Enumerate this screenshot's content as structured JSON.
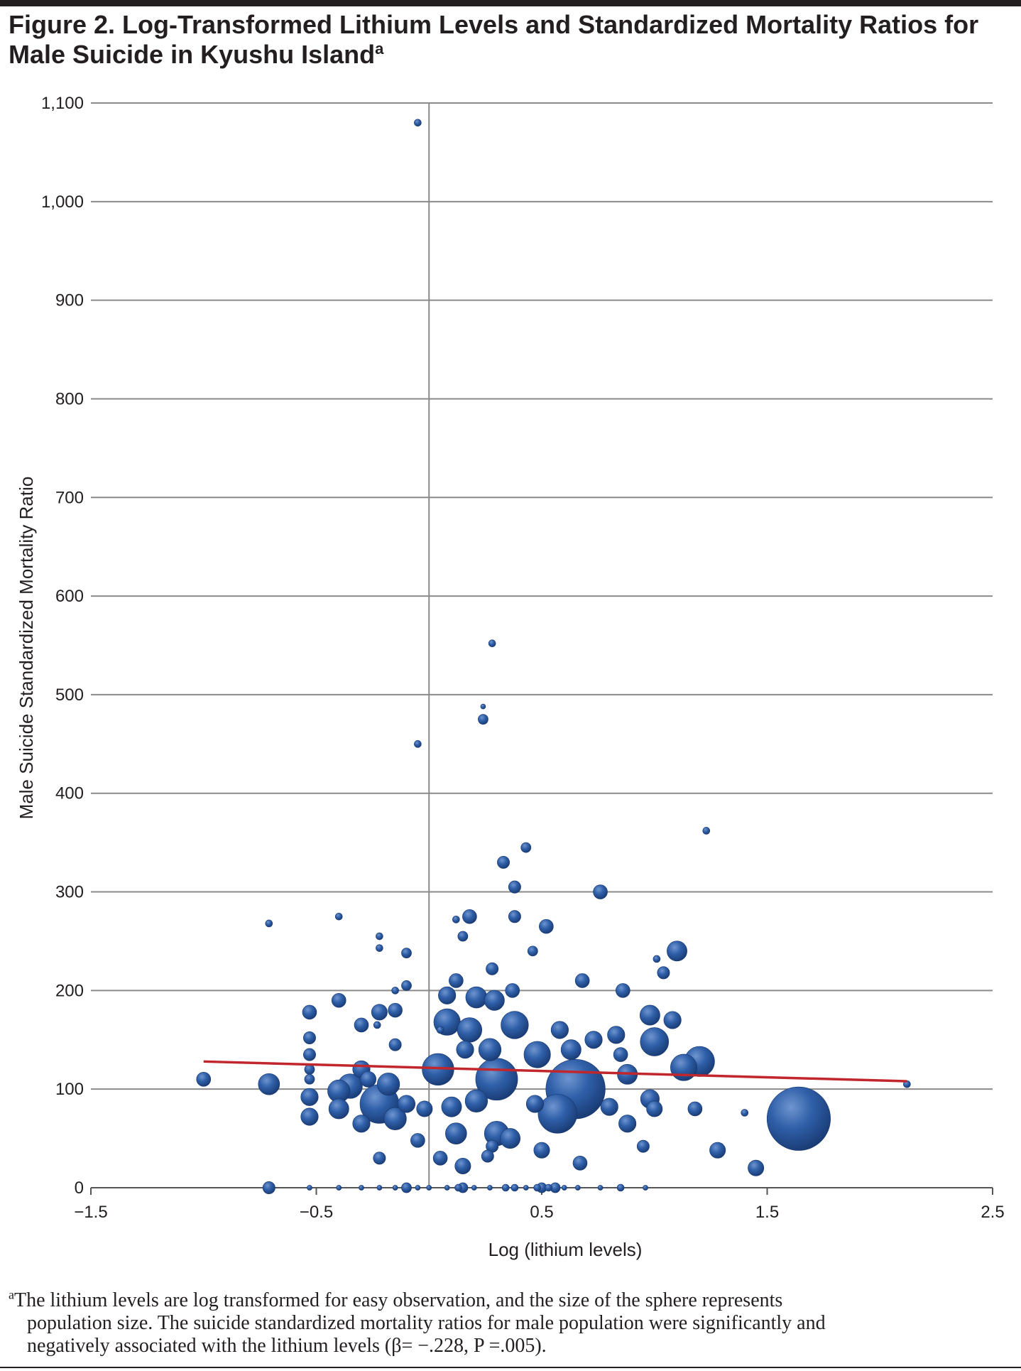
{
  "figure": {
    "title": "Figure 2. Log-Transformed Lithium Levels and Standardized Mortality Ratios for Male Suicide in Kyushu Island",
    "title_superscript": "a",
    "footnote": {
      "marker": "a",
      "lines": [
        "The lithium levels are log transformed for easy observation, and the size of the sphere represents",
        "population size. The suicide standardized mortality ratios for male population were significantly and",
        "negatively associated with the lithium levels (β= −.228, P =.005)."
      ]
    }
  },
  "colors": {
    "bubble": "#2f5fa8",
    "bubble_highlight": "#6f95d0",
    "bubble_shadow": "#17376e",
    "regression_line": "#c0262c",
    "gridline": "#8a8a8a",
    "text": "#231f20"
  },
  "chart_data": {
    "type": "scatter",
    "variant": "bubble",
    "title": "",
    "xlabel": "Log (lithium levels)",
    "ylabel": "Male Suicide Standardized Mortality Ratio",
    "xlim": [
      -1.5,
      2.5
    ],
    "ylim": [
      0,
      1100
    ],
    "x_ticks": [
      -1.5,
      -0.5,
      0.5,
      1.5,
      2.5
    ],
    "x_tick_labels": [
      "−1.5",
      "−0.5",
      "0.5",
      "1.5",
      "2.5"
    ],
    "y_ticks": [
      0,
      100,
      200,
      300,
      400,
      500,
      600,
      700,
      800,
      900,
      1000,
      1100
    ],
    "y_tick_labels": [
      "0",
      "100",
      "200",
      "300",
      "400",
      "500",
      "600",
      "700",
      "800",
      "900",
      "1,000",
      "1,100"
    ],
    "grid": "horizontal",
    "vertical_axis_at_x": 0,
    "size_encoding": "population size",
    "regression_line": {
      "x": [
        -1.0,
        2.12
      ],
      "y": [
        128,
        108
      ]
    },
    "points": [
      {
        "x": -0.05,
        "y": 1080,
        "s": 1
      },
      {
        "x": 0.28,
        "y": 552,
        "s": 1
      },
      {
        "x": 0.24,
        "y": 488,
        "s": 0.5
      },
      {
        "x": 0.24,
        "y": 475,
        "s": 2
      },
      {
        "x": -0.05,
        "y": 450,
        "s": 1
      },
      {
        "x": 1.23,
        "y": 362,
        "s": 1
      },
      {
        "x": 0.43,
        "y": 345,
        "s": 2
      },
      {
        "x": 0.33,
        "y": 330,
        "s": 3
      },
      {
        "x": 0.38,
        "y": 305,
        "s": 3
      },
      {
        "x": 0.76,
        "y": 300,
        "s": 4
      },
      {
        "x": -0.71,
        "y": 268,
        "s": 1
      },
      {
        "x": -0.4,
        "y": 275,
        "s": 1
      },
      {
        "x": 0.18,
        "y": 275,
        "s": 4
      },
      {
        "x": 0.38,
        "y": 275,
        "s": 3
      },
      {
        "x": 0.12,
        "y": 272,
        "s": 1
      },
      {
        "x": 0.52,
        "y": 265,
        "s": 4
      },
      {
        "x": -0.22,
        "y": 255,
        "s": 1
      },
      {
        "x": 0.15,
        "y": 255,
        "s": 2
      },
      {
        "x": -0.22,
        "y": 243,
        "s": 1
      },
      {
        "x": 0.46,
        "y": 240,
        "s": 2
      },
      {
        "x": -0.1,
        "y": 238,
        "s": 2
      },
      {
        "x": 1.1,
        "y": 240,
        "s": 8
      },
      {
        "x": 1.01,
        "y": 232,
        "s": 1
      },
      {
        "x": 0.28,
        "y": 222,
        "s": 3
      },
      {
        "x": 1.04,
        "y": 218,
        "s": 3
      },
      {
        "x": 0.12,
        "y": 210,
        "s": 4
      },
      {
        "x": 0.68,
        "y": 210,
        "s": 4
      },
      {
        "x": -0.1,
        "y": 205,
        "s": 2
      },
      {
        "x": 0.86,
        "y": 200,
        "s": 4
      },
      {
        "x": 0.37,
        "y": 200,
        "s": 4
      },
      {
        "x": -0.15,
        "y": 200,
        "s": 1
      },
      {
        "x": 0.08,
        "y": 195,
        "s": 6
      },
      {
        "x": 0.21,
        "y": 193,
        "s": 9
      },
      {
        "x": 0.29,
        "y": 190,
        "s": 8
      },
      {
        "x": -0.4,
        "y": 190,
        "s": 4
      },
      {
        "x": -0.53,
        "y": 178,
        "s": 4
      },
      {
        "x": -0.22,
        "y": 178,
        "s": 5
      },
      {
        "x": -0.15,
        "y": 180,
        "s": 4
      },
      {
        "x": 0.98,
        "y": 175,
        "s": 8
      },
      {
        "x": 1.08,
        "y": 170,
        "s": 6
      },
      {
        "x": 0.08,
        "y": 168,
        "s": 14
      },
      {
        "x": 0.18,
        "y": 160,
        "s": 12
      },
      {
        "x": 0.38,
        "y": 165,
        "s": 15
      },
      {
        "x": -0.3,
        "y": 165,
        "s": 4
      },
      {
        "x": -0.23,
        "y": 165,
        "s": 1
      },
      {
        "x": 0.58,
        "y": 160,
        "s": 6
      },
      {
        "x": 0.83,
        "y": 155,
        "s": 6
      },
      {
        "x": 0.05,
        "y": 160,
        "s": 1
      },
      {
        "x": -0.53,
        "y": 152,
        "s": 3
      },
      {
        "x": 0.73,
        "y": 150,
        "s": 6
      },
      {
        "x": 1.0,
        "y": 148,
        "s": 16
      },
      {
        "x": 0.16,
        "y": 140,
        "s": 6
      },
      {
        "x": 0.27,
        "y": 140,
        "s": 10
      },
      {
        "x": 0.48,
        "y": 135,
        "s": 14
      },
      {
        "x": 0.63,
        "y": 140,
        "s": 8
      },
      {
        "x": 0.85,
        "y": 135,
        "s": 4
      },
      {
        "x": -0.15,
        "y": 145,
        "s": 3
      },
      {
        "x": -0.53,
        "y": 135,
        "s": 3
      },
      {
        "x": 1.2,
        "y": 128,
        "s": 18
      },
      {
        "x": 1.13,
        "y": 122,
        "s": 14
      },
      {
        "x": 0.04,
        "y": 120,
        "s": 20
      },
      {
        "x": 0.3,
        "y": 110,
        "s": 35
      },
      {
        "x": 0.65,
        "y": 100,
        "s": 70
      },
      {
        "x": 0.88,
        "y": 115,
        "s": 8
      },
      {
        "x": -0.3,
        "y": 120,
        "s": 6
      },
      {
        "x": -0.27,
        "y": 110,
        "s": 5
      },
      {
        "x": -0.53,
        "y": 120,
        "s": 2
      },
      {
        "x": -0.53,
        "y": 110,
        "s": 2
      },
      {
        "x": -1.0,
        "y": 110,
        "s": 4
      },
      {
        "x": -0.71,
        "y": 105,
        "s": 9
      },
      {
        "x": -0.4,
        "y": 98,
        "s": 10
      },
      {
        "x": -0.35,
        "y": 103,
        "s": 12
      },
      {
        "x": -0.22,
        "y": 85,
        "s": 30
      },
      {
        "x": -0.18,
        "y": 105,
        "s": 10
      },
      {
        "x": -0.1,
        "y": 85,
        "s": 6
      },
      {
        "x": -0.02,
        "y": 80,
        "s": 5
      },
      {
        "x": 0.1,
        "y": 82,
        "s": 8
      },
      {
        "x": 0.21,
        "y": 88,
        "s": 10
      },
      {
        "x": 0.47,
        "y": 85,
        "s": 6
      },
      {
        "x": 0.57,
        "y": 75,
        "s": 30
      },
      {
        "x": 0.8,
        "y": 82,
        "s": 6
      },
      {
        "x": 0.98,
        "y": 90,
        "s": 7
      },
      {
        "x": 1.0,
        "y": 80,
        "s": 5
      },
      {
        "x": 1.18,
        "y": 80,
        "s": 4
      },
      {
        "x": 0.88,
        "y": 65,
        "s": 6
      },
      {
        "x": -0.53,
        "y": 92,
        "s": 6
      },
      {
        "x": -0.53,
        "y": 72,
        "s": 6
      },
      {
        "x": -0.4,
        "y": 80,
        "s": 8
      },
      {
        "x": -0.3,
        "y": 65,
        "s": 6
      },
      {
        "x": -0.15,
        "y": 70,
        "s": 10
      },
      {
        "x": 0.12,
        "y": 55,
        "s": 9
      },
      {
        "x": 0.3,
        "y": 55,
        "s": 12
      },
      {
        "x": 0.36,
        "y": 50,
        "s": 8
      },
      {
        "x": 0.28,
        "y": 42,
        "s": 3
      },
      {
        "x": 0.5,
        "y": 38,
        "s": 5
      },
      {
        "x": -0.05,
        "y": 48,
        "s": 4
      },
      {
        "x": 0.95,
        "y": 42,
        "s": 3
      },
      {
        "x": 1.28,
        "y": 38,
        "s": 5
      },
      {
        "x": -0.22,
        "y": 30,
        "s": 3
      },
      {
        "x": 0.05,
        "y": 30,
        "s": 4
      },
      {
        "x": 0.15,
        "y": 22,
        "s": 5
      },
      {
        "x": 0.26,
        "y": 32,
        "s": 3
      },
      {
        "x": 0.67,
        "y": 25,
        "s": 4
      },
      {
        "x": 1.45,
        "y": 20,
        "s": 5
      },
      {
        "x": 1.4,
        "y": 76,
        "s": 1
      },
      {
        "x": 1.64,
        "y": 70,
        "s": 80
      },
      {
        "x": 2.12,
        "y": 105,
        "s": 1
      },
      {
        "x": -0.71,
        "y": 0,
        "s": 3
      },
      {
        "x": -0.53,
        "y": 0,
        "s": 0.5
      },
      {
        "x": -0.4,
        "y": 0,
        "s": 0.5
      },
      {
        "x": -0.3,
        "y": 0,
        "s": 0.5
      },
      {
        "x": -0.22,
        "y": 0,
        "s": 0.5
      },
      {
        "x": -0.15,
        "y": 0,
        "s": 0.5
      },
      {
        "x": -0.1,
        "y": 0,
        "s": 2
      },
      {
        "x": -0.05,
        "y": 0,
        "s": 0.5
      },
      {
        "x": 0.0,
        "y": 0,
        "s": 0.5
      },
      {
        "x": 0.08,
        "y": 0,
        "s": 0.5
      },
      {
        "x": 0.13,
        "y": 0,
        "s": 1
      },
      {
        "x": 0.15,
        "y": 0,
        "s": 2
      },
      {
        "x": 0.2,
        "y": 0,
        "s": 0.5
      },
      {
        "x": 0.27,
        "y": 0,
        "s": 0.5
      },
      {
        "x": 0.34,
        "y": 0,
        "s": 1
      },
      {
        "x": 0.38,
        "y": 0,
        "s": 1
      },
      {
        "x": 0.43,
        "y": 0,
        "s": 0.5
      },
      {
        "x": 0.48,
        "y": 0,
        "s": 1
      },
      {
        "x": 0.5,
        "y": 0,
        "s": 2
      },
      {
        "x": 0.53,
        "y": 0,
        "s": 1
      },
      {
        "x": 0.56,
        "y": 0,
        "s": 2
      },
      {
        "x": 0.6,
        "y": 0,
        "s": 0.5
      },
      {
        "x": 0.66,
        "y": 0,
        "s": 0.5
      },
      {
        "x": 0.76,
        "y": 0,
        "s": 0.5
      },
      {
        "x": 0.85,
        "y": 0,
        "s": 1
      },
      {
        "x": 0.96,
        "y": 0,
        "s": 0.5
      }
    ]
  }
}
